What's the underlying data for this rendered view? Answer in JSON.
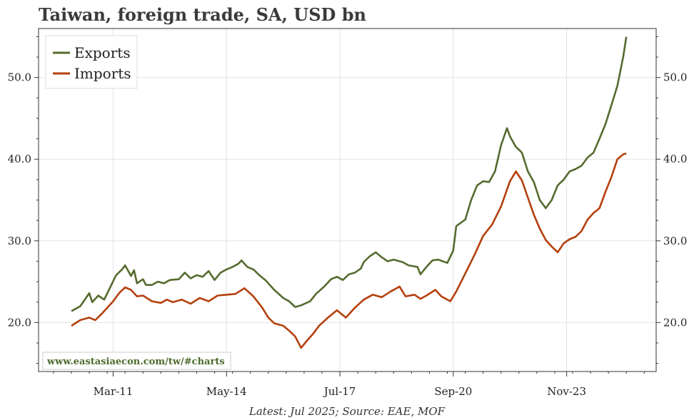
{
  "chart_data": {
    "type": "line",
    "title": "Taiwan, foreign trade, SA, USD bn",
    "xlabel": "Latest: Jul 2025; Source: EAE, MOF",
    "ylabel": "",
    "ylim": [
      14,
      56
    ],
    "yticks": [
      "20.0",
      "30.0",
      "40.0",
      "50.0"
    ],
    "xticks": [
      "Mar-11",
      "May-14",
      "Jul-17",
      "Sep-20",
      "Nov-23"
    ],
    "legend_position": "top-left",
    "grid": true,
    "watermark": "www.eastasiaecon.com/tw/#charts",
    "series": [
      {
        "name": "Exports",
        "color": "#556b2f",
        "points": [
          [
            "2010-01",
            21.4
          ],
          [
            "2010-04",
            22.0
          ],
          [
            "2010-07",
            23.6
          ],
          [
            "2010-08",
            22.5
          ],
          [
            "2010-10",
            23.3
          ],
          [
            "2010-12",
            22.8
          ],
          [
            "2011-02",
            24.3
          ],
          [
            "2011-04",
            25.8
          ],
          [
            "2011-06",
            26.5
          ],
          [
            "2011-07",
            27.0
          ],
          [
            "2011-09",
            25.7
          ],
          [
            "2011-10",
            26.4
          ],
          [
            "2011-11",
            24.8
          ],
          [
            "2012-01",
            25.3
          ],
          [
            "2012-02",
            24.6
          ],
          [
            "2012-04",
            24.6
          ],
          [
            "2012-06",
            25.0
          ],
          [
            "2012-08",
            24.8
          ],
          [
            "2012-10",
            25.2
          ],
          [
            "2013-01",
            25.3
          ],
          [
            "2013-03",
            26.1
          ],
          [
            "2013-05",
            25.4
          ],
          [
            "2013-07",
            25.8
          ],
          [
            "2013-09",
            25.6
          ],
          [
            "2013-11",
            26.3
          ],
          [
            "2014-01",
            25.2
          ],
          [
            "2014-03",
            26.1
          ],
          [
            "2014-05",
            26.5
          ],
          [
            "2014-07",
            26.8
          ],
          [
            "2014-09",
            27.2
          ],
          [
            "2014-10",
            27.6
          ],
          [
            "2014-12",
            26.8
          ],
          [
            "2015-02",
            26.5
          ],
          [
            "2015-04",
            25.8
          ],
          [
            "2015-06",
            25.2
          ],
          [
            "2015-09",
            24.0
          ],
          [
            "2015-12",
            23.0
          ],
          [
            "2016-02",
            22.6
          ],
          [
            "2016-04",
            21.9
          ],
          [
            "2016-06",
            22.1
          ],
          [
            "2016-09",
            22.6
          ],
          [
            "2016-11",
            23.5
          ],
          [
            "2017-02",
            24.5
          ],
          [
            "2017-04",
            25.3
          ],
          [
            "2017-06",
            25.6
          ],
          [
            "2017-08",
            25.2
          ],
          [
            "2017-10",
            25.9
          ],
          [
            "2017-12",
            26.1
          ],
          [
            "2018-02",
            26.6
          ],
          [
            "2018-03",
            27.4
          ],
          [
            "2018-05",
            28.1
          ],
          [
            "2018-07",
            28.6
          ],
          [
            "2018-09",
            28.0
          ],
          [
            "2018-11",
            27.5
          ],
          [
            "2019-01",
            27.7
          ],
          [
            "2019-04",
            27.4
          ],
          [
            "2019-06",
            27.0
          ],
          [
            "2019-09",
            26.8
          ],
          [
            "2019-10",
            25.9
          ],
          [
            "2019-12",
            26.8
          ],
          [
            "2020-02",
            27.6
          ],
          [
            "2020-04",
            27.7
          ],
          [
            "2020-07",
            27.3
          ],
          [
            "2020-09",
            28.8
          ],
          [
            "2020-10",
            31.8
          ],
          [
            "2021-01",
            32.6
          ],
          [
            "2021-03",
            35.0
          ],
          [
            "2021-05",
            36.8
          ],
          [
            "2021-07",
            37.3
          ],
          [
            "2021-09",
            37.2
          ],
          [
            "2021-11",
            38.5
          ],
          [
            "2022-01",
            41.7
          ],
          [
            "2022-03",
            43.8
          ],
          [
            "2022-04",
            42.8
          ],
          [
            "2022-06",
            41.5
          ],
          [
            "2022-08",
            40.8
          ],
          [
            "2022-10",
            38.5
          ],
          [
            "2022-12",
            37.2
          ],
          [
            "2023-02",
            35.0
          ],
          [
            "2023-04",
            34.0
          ],
          [
            "2023-06",
            35.0
          ],
          [
            "2023-08",
            36.8
          ],
          [
            "2023-10",
            37.5
          ],
          [
            "2023-12",
            38.5
          ],
          [
            "2024-02",
            38.8
          ],
          [
            "2024-04",
            39.2
          ],
          [
            "2024-06",
            40.2
          ],
          [
            "2024-08",
            40.8
          ],
          [
            "2024-10",
            42.5
          ],
          [
            "2024-12",
            44.3
          ],
          [
            "2025-02",
            46.6
          ],
          [
            "2025-04",
            49.0
          ],
          [
            "2025-06",
            52.6
          ],
          [
            "2025-07",
            55.0
          ]
        ]
      },
      {
        "name": "Imports",
        "color": "#b5400e",
        "points": [
          [
            "2010-01",
            19.6
          ],
          [
            "2010-04",
            20.3
          ],
          [
            "2010-07",
            20.6
          ],
          [
            "2010-09",
            20.3
          ],
          [
            "2010-11",
            21.0
          ],
          [
            "2011-01",
            21.8
          ],
          [
            "2011-03",
            22.6
          ],
          [
            "2011-05",
            23.6
          ],
          [
            "2011-07",
            24.3
          ],
          [
            "2011-09",
            24.0
          ],
          [
            "2011-11",
            23.2
          ],
          [
            "2012-01",
            23.3
          ],
          [
            "2012-04",
            22.6
          ],
          [
            "2012-07",
            22.4
          ],
          [
            "2012-09",
            22.8
          ],
          [
            "2012-11",
            22.5
          ],
          [
            "2013-02",
            22.8
          ],
          [
            "2013-05",
            22.3
          ],
          [
            "2013-08",
            23.0
          ],
          [
            "2013-11",
            22.6
          ],
          [
            "2014-02",
            23.3
          ],
          [
            "2014-05",
            23.4
          ],
          [
            "2014-08",
            23.5
          ],
          [
            "2014-11",
            24.2
          ],
          [
            "2015-02",
            23.2
          ],
          [
            "2015-05",
            21.8
          ],
          [
            "2015-07",
            20.6
          ],
          [
            "2015-09",
            19.9
          ],
          [
            "2015-12",
            19.6
          ],
          [
            "2016-02",
            19.0
          ],
          [
            "2016-04",
            18.3
          ],
          [
            "2016-06",
            16.9
          ],
          [
            "2016-08",
            17.8
          ],
          [
            "2016-10",
            18.6
          ],
          [
            "2016-12",
            19.6
          ],
          [
            "2017-03",
            20.6
          ],
          [
            "2017-06",
            21.5
          ],
          [
            "2017-09",
            20.6
          ],
          [
            "2017-12",
            21.8
          ],
          [
            "2018-03",
            22.8
          ],
          [
            "2018-06",
            23.4
          ],
          [
            "2018-09",
            23.1
          ],
          [
            "2018-12",
            23.8
          ],
          [
            "2019-03",
            24.4
          ],
          [
            "2019-05",
            23.2
          ],
          [
            "2019-08",
            23.4
          ],
          [
            "2019-10",
            22.9
          ],
          [
            "2019-12",
            23.3
          ],
          [
            "2020-03",
            24.0
          ],
          [
            "2020-05",
            23.2
          ],
          [
            "2020-08",
            22.6
          ],
          [
            "2020-10",
            23.8
          ],
          [
            "2021-01",
            26.0
          ],
          [
            "2021-04",
            28.2
          ],
          [
            "2021-07",
            30.6
          ],
          [
            "2021-10",
            32.0
          ],
          [
            "2022-01",
            34.2
          ],
          [
            "2022-04",
            37.3
          ],
          [
            "2022-06",
            38.5
          ],
          [
            "2022-08",
            37.4
          ],
          [
            "2022-10",
            35.3
          ],
          [
            "2022-12",
            33.2
          ],
          [
            "2023-02",
            31.5
          ],
          [
            "2023-04",
            30.1
          ],
          [
            "2023-06",
            29.3
          ],
          [
            "2023-08",
            28.6
          ],
          [
            "2023-10",
            29.7
          ],
          [
            "2023-12",
            30.2
          ],
          [
            "2024-02",
            30.5
          ],
          [
            "2024-04",
            31.2
          ],
          [
            "2024-06",
            32.6
          ],
          [
            "2024-08",
            33.4
          ],
          [
            "2024-10",
            34.0
          ],
          [
            "2024-12",
            36.0
          ],
          [
            "2025-02",
            37.8
          ],
          [
            "2025-04",
            40.0
          ],
          [
            "2025-06",
            40.6
          ],
          [
            "2025-07",
            40.7
          ]
        ]
      }
    ]
  }
}
